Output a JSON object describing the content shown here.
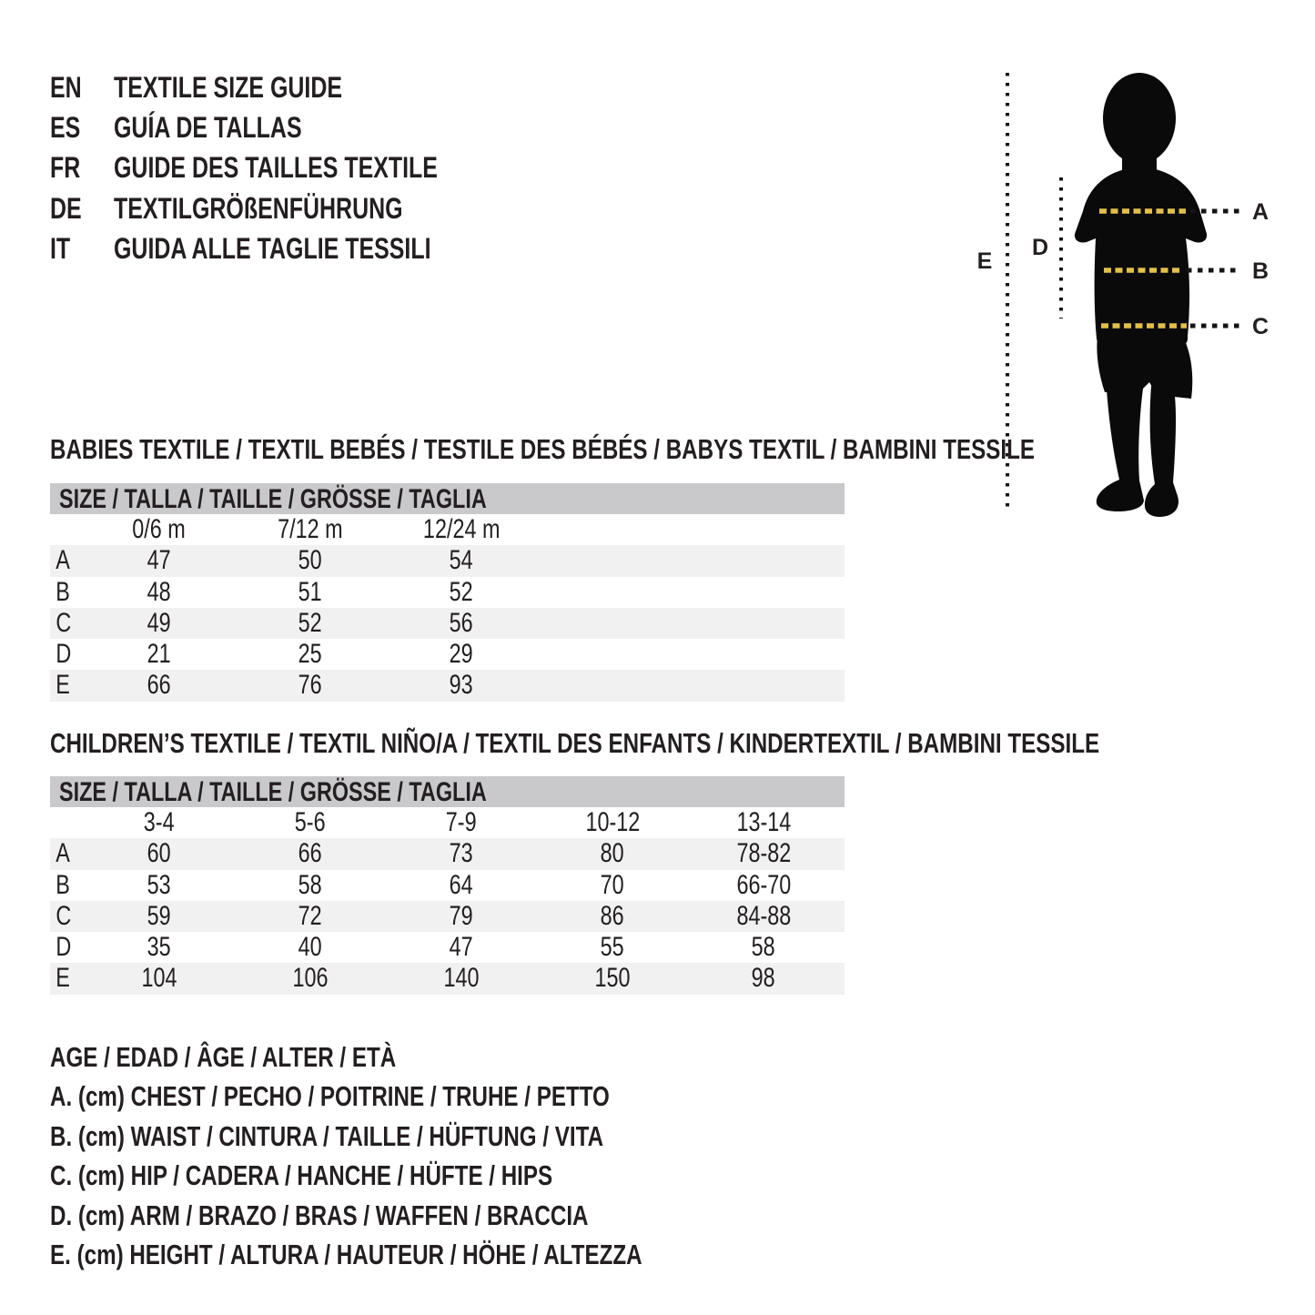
{
  "header": {
    "languages": [
      {
        "code": "EN",
        "title": "TEXTILE SIZE GUIDE"
      },
      {
        "code": "ES",
        "title": "GUÍA DE TALLAS"
      },
      {
        "code": "FR",
        "title": "GUIDE DES TAILLES TEXTILE"
      },
      {
        "code": "DE",
        "title": "TEXTILGRÖßENFÜHRUNG"
      },
      {
        "code": "IT",
        "title": "GUIDA ALLE TAGLIE TESSILI"
      }
    ]
  },
  "diagram": {
    "labels": {
      "A": "A",
      "B": "B",
      "C": "C",
      "D": "D",
      "E": "E"
    }
  },
  "babies": {
    "heading": "BABIES TEXTILE / TEXTIL BEBÉS / TESTILE DES BÉBÉS / BABYS TEXTIL / BAMBINI TESSILE",
    "size_header": "SIZE / TALLA / TAILLE / GRÖSSE / TAGLIA",
    "columns": [
      "0/6 m",
      "7/12 m",
      "12/24 m"
    ],
    "rows": [
      {
        "label": "A",
        "values": [
          "47",
          "50",
          "54"
        ]
      },
      {
        "label": "B",
        "values": [
          "48",
          "51",
          "52"
        ]
      },
      {
        "label": "C",
        "values": [
          "49",
          "52",
          "56"
        ]
      },
      {
        "label": "D",
        "values": [
          "21",
          "25",
          "29"
        ]
      },
      {
        "label": "E",
        "values": [
          "66",
          "76",
          "93"
        ]
      }
    ]
  },
  "children": {
    "heading": "CHILDREN’S TEXTILE / TEXTIL NIÑO/A / TEXTIL DES ENFANTS / KINDERTEXTIL / BAMBINI TESSILE",
    "size_header": "SIZE / TALLA / TAILLE / GRÖSSE / TAGLIA",
    "columns": [
      "3-4",
      "5-6",
      "7-9",
      "10-12",
      "13-14"
    ],
    "rows": [
      {
        "label": "A",
        "values": [
          "60",
          "66",
          "73",
          "80",
          "78-82"
        ]
      },
      {
        "label": "B",
        "values": [
          "53",
          "58",
          "64",
          "70",
          "66-70"
        ]
      },
      {
        "label": "C",
        "values": [
          "59",
          "72",
          "79",
          "86",
          "84-88"
        ]
      },
      {
        "label": "D",
        "values": [
          "35",
          "40",
          "47",
          "55",
          "58"
        ]
      },
      {
        "label": "E",
        "values": [
          "104",
          "106",
          "140",
          "150",
          "98"
        ]
      }
    ]
  },
  "legend": {
    "lines": [
      "AGE / EDAD / ÂGE / ALTER / ETÀ",
      "A. (cm) CHEST / PECHO / POITRINE / TRUHE / PETTO",
      "B. (cm) WAIST / CINTURA / TAILLE / HÜFTUNG / VITA",
      "C. (cm) HIP / CADERA / HANCHE / HÜFTE / HIPS",
      "D. (cm) ARM / BRAZO / BRAS / WAFFEN / BRACCIA",
      "E. (cm) HEIGHT / ALTURA / HAUTEUR / HÖHE / ALTEZZA"
    ]
  },
  "colors": {
    "text": "#231f20",
    "bar": "#c9c9cb",
    "stripe": "#f1f1f2",
    "accent": "#e2bf4a",
    "ink": "#0a0a0a"
  }
}
